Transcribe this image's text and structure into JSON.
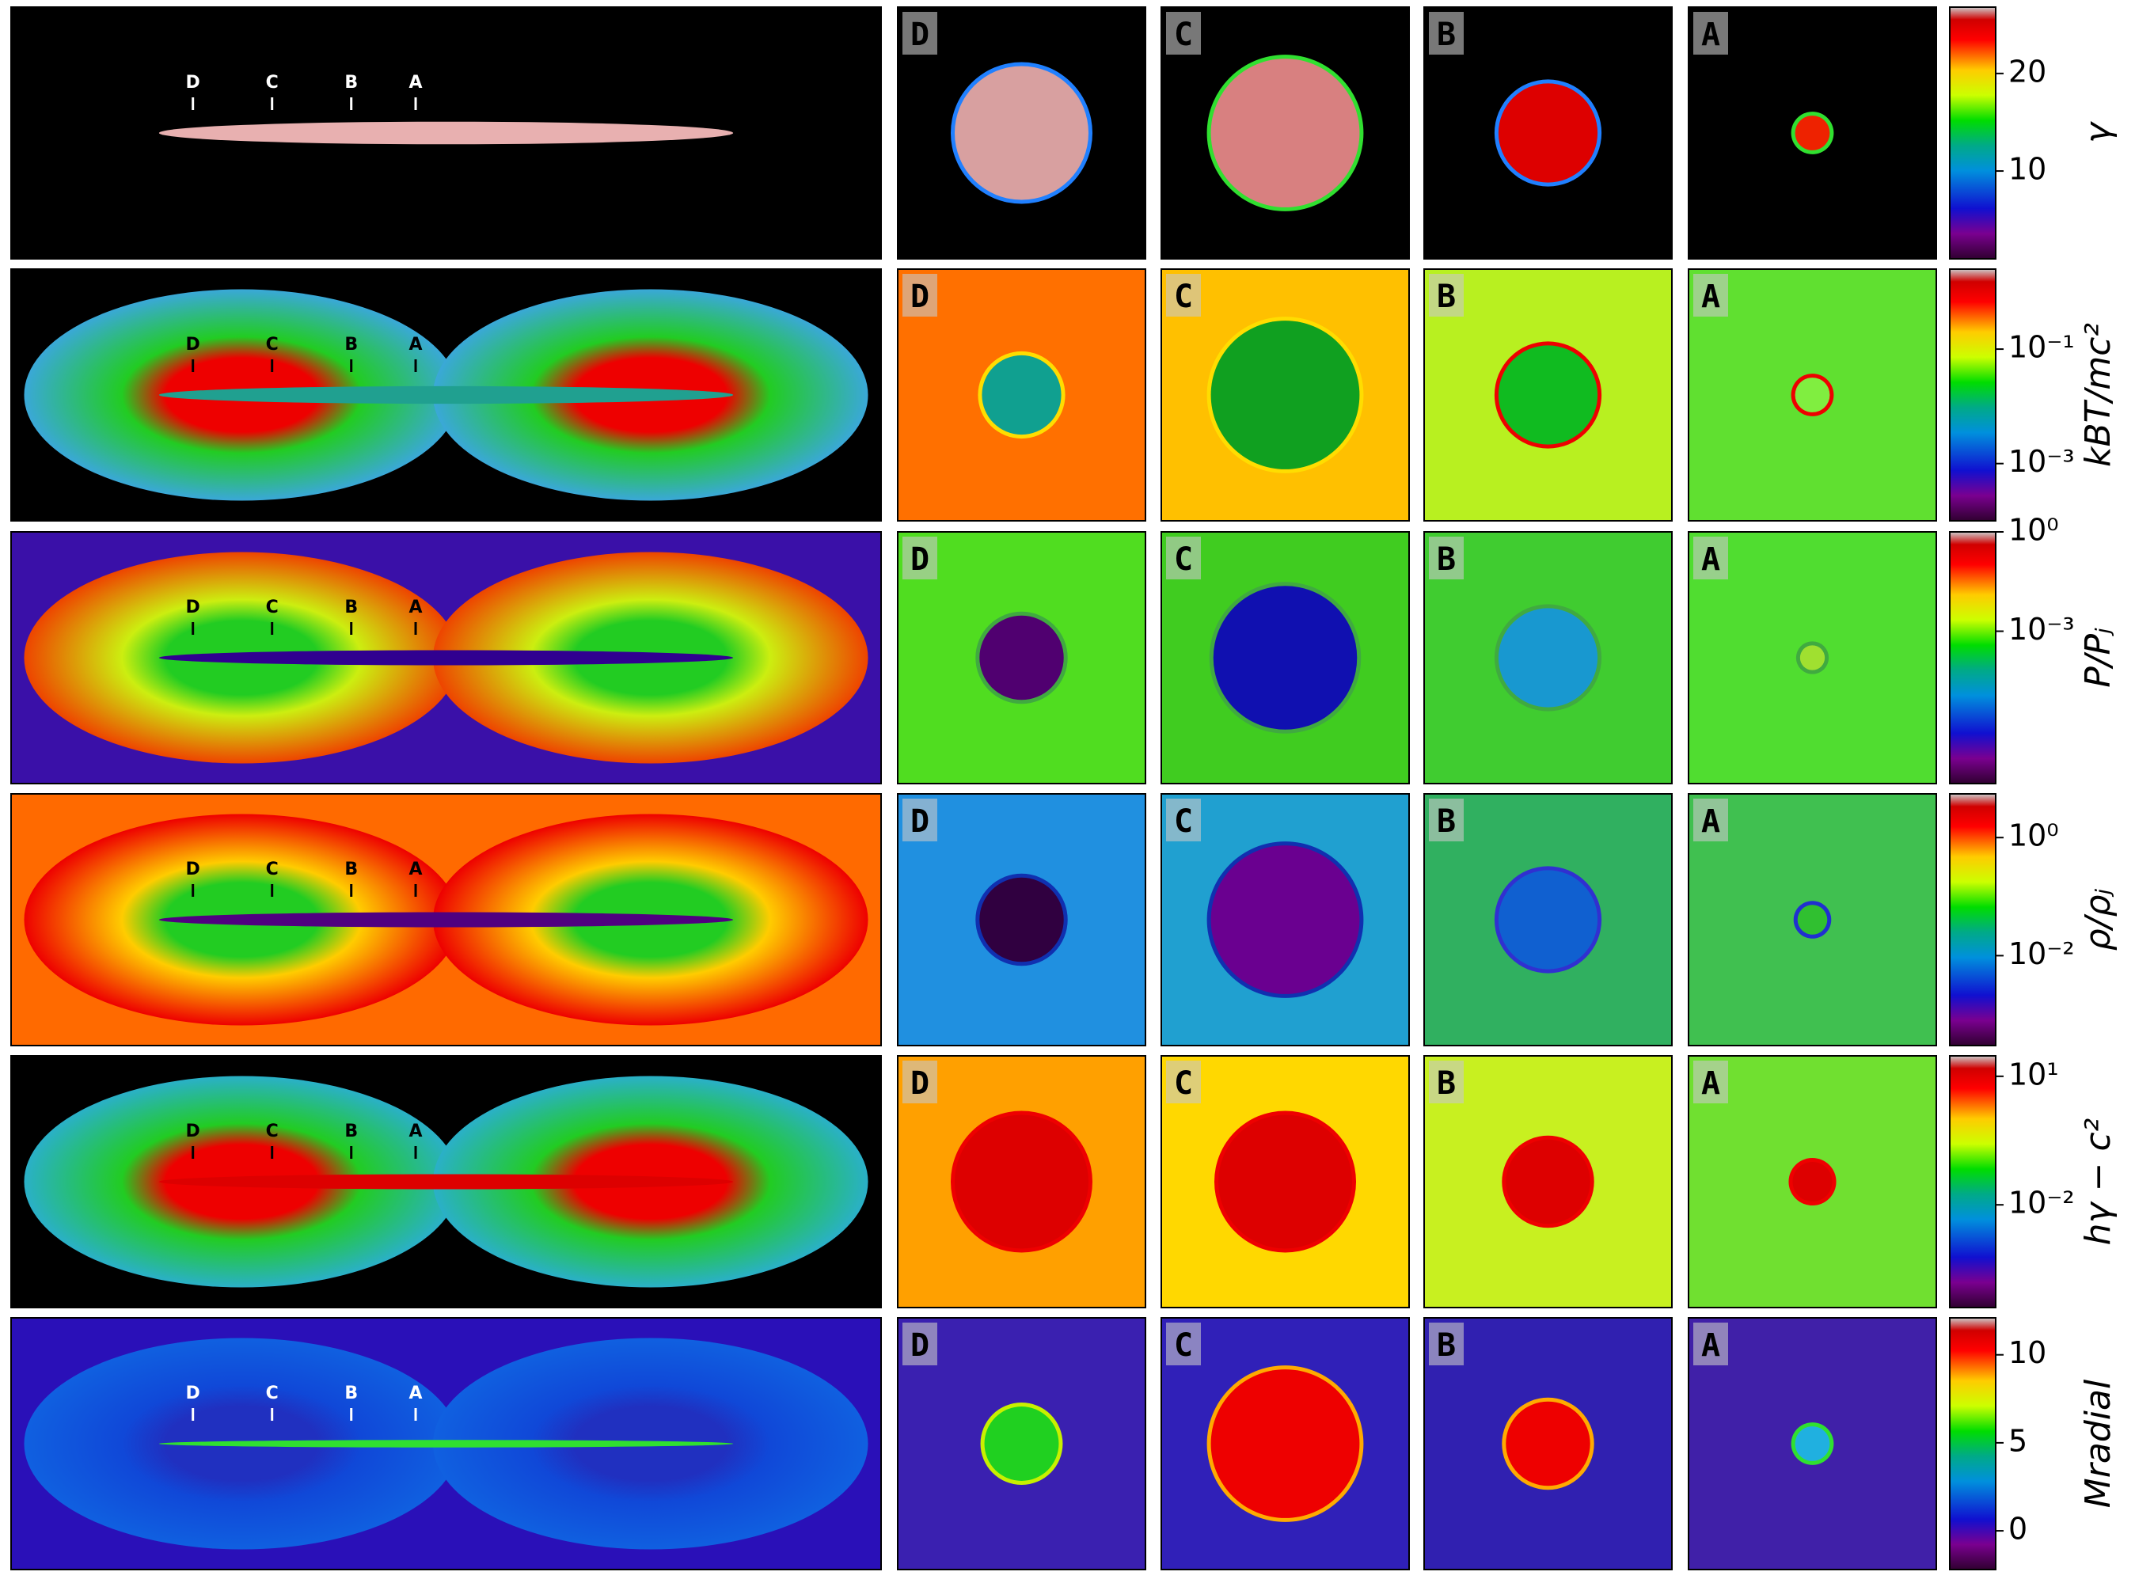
{
  "cuts": [
    "D",
    "C",
    "B",
    "A"
  ],
  "rows": [
    {
      "quantity": "γ",
      "colorbar": {
        "log": false,
        "lim": [
          1,
          26.8
        ],
        "ticks": [
          10,
          20
        ]
      }
    },
    {
      "quantity": "kBT/mc²",
      "colorbar": {
        "log": true,
        "lim": [
          0.0001,
          2.5
        ],
        "ticks": [
          {
            "value": 0.1,
            "label": "10⁻¹"
          },
          {
            "value": 0.001,
            "label": "10⁻³"
          }
        ]
      }
    },
    {
      "quantity": "P/Pⱼ",
      "colorbar": {
        "log": true,
        "lim": [
          2.5e-08,
          1
        ],
        "ticks": [
          {
            "value": 1,
            "label": "10⁰"
          },
          {
            "value": 0.001,
            "label": "10⁻³"
          }
        ]
      }
    },
    {
      "quantity": "ρ/ρⱼ",
      "colorbar": {
        "log": true,
        "lim": [
          0.0003,
          5.5
        ],
        "ticks": [
          {
            "value": 1,
            "label": "10⁰"
          },
          {
            "value": 0.01,
            "label": "10⁻²"
          }
        ]
      }
    },
    {
      "quantity": "hγ − c²",
      "colorbar": {
        "log": true,
        "lim": [
          4e-05,
          30
        ],
        "ticks": [
          {
            "value": 10,
            "label": "10¹"
          },
          {
            "value": 0.01,
            "label": "10⁻²"
          }
        ]
      }
    },
    {
      "quantity": "Mradial",
      "colorbar": {
        "log": false,
        "lim": [
          -2.2,
          12.1
        ],
        "ticks": [
          0,
          5,
          10
        ]
      }
    }
  ]
}
